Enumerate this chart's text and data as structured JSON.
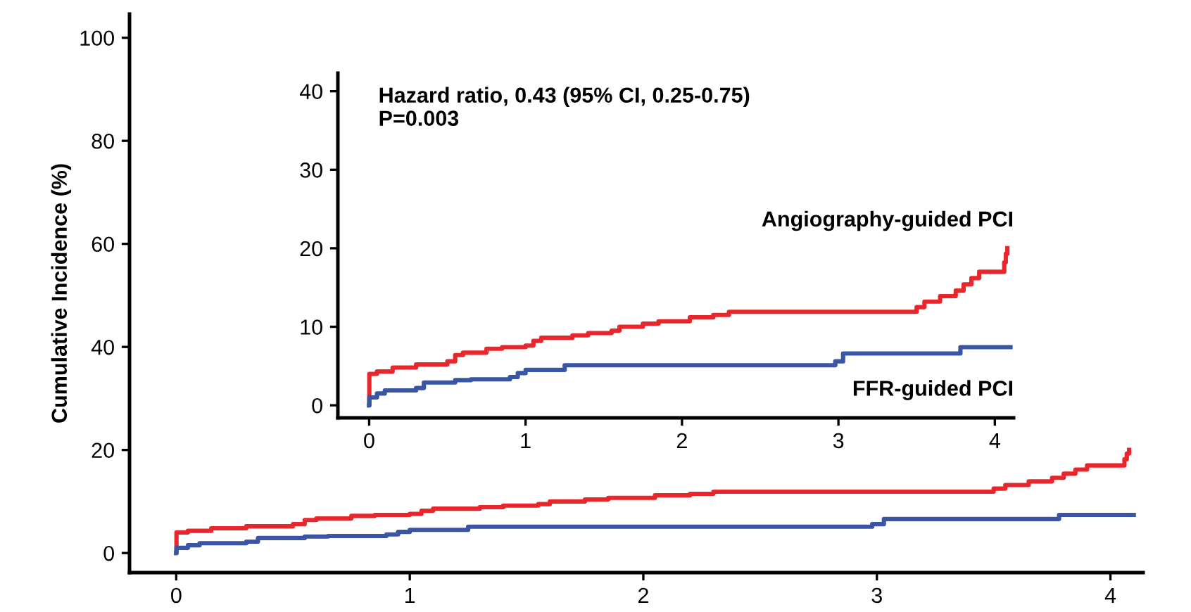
{
  "chart_data": [
    {
      "type": "step",
      "ylabel": "Cumulative Incidence (%)",
      "xlim": [
        -0.2,
        4.14
      ],
      "ylim": [
        -3.8,
        104.6
      ],
      "xticks": [
        0,
        1,
        2,
        3,
        4
      ],
      "yticks": [
        0,
        20,
        40,
        60,
        80,
        100
      ],
      "grid": false,
      "legend": false,
      "series": [
        {
          "color": "#e8262b",
          "x": [
            0,
            0.001,
            0.05,
            0.15,
            0.3,
            0.5,
            0.55,
            0.6,
            0.75,
            0.85,
            1.0,
            1.05,
            1.1,
            1.3,
            1.4,
            1.55,
            1.6,
            1.75,
            1.85,
            2.05,
            2.2,
            2.3,
            3.5,
            3.55,
            3.65,
            3.75,
            3.8,
            3.85,
            3.9,
            4.06,
            4.07,
            4.08
          ],
          "values": [
            0,
            4,
            4.3,
            4.8,
            5.2,
            5.6,
            6.4,
            6.7,
            7.2,
            7.4,
            7.6,
            8.2,
            8.6,
            8.9,
            9.2,
            9.5,
            10.0,
            10.4,
            10.7,
            11.2,
            11.5,
            11.9,
            12.5,
            13.2,
            13.9,
            14.6,
            15.4,
            16.2,
            17.0,
            18.2,
            19.3,
            20.0
          ]
        },
        {
          "color": "#3a55a4",
          "x": [
            0,
            0.001,
            0.05,
            0.1,
            0.3,
            0.35,
            0.55,
            0.65,
            0.9,
            0.95,
            1.0,
            1.25,
            2.98,
            3.03,
            3.78,
            4.1
          ],
          "values": [
            0,
            1.0,
            1.5,
            1.9,
            2.2,
            2.9,
            3.2,
            3.3,
            3.6,
            4.1,
            4.5,
            5.1,
            5.6,
            6.6,
            7.4,
            7.4
          ]
        }
      ]
    },
    {
      "type": "step",
      "xlim": [
        -0.2,
        4.12
      ],
      "ylim": [
        -1.6,
        42.3
      ],
      "xticks": [
        0,
        1,
        2,
        3,
        4
      ],
      "yticks": [
        0,
        10,
        20,
        30,
        40
      ],
      "grid": false,
      "legend": false,
      "annotations": [
        "Hazard ratio, 0.43 (95% CI, 0.25-0.75)\nP=0.003"
      ],
      "series": [
        {
          "name": "Angiography-guided PCI",
          "color": "#e8262b",
          "x": [
            0,
            0.001,
            0.05,
            0.15,
            0.3,
            0.5,
            0.55,
            0.6,
            0.75,
            0.85,
            1.0,
            1.05,
            1.1,
            1.3,
            1.4,
            1.55,
            1.6,
            1.75,
            1.85,
            2.05,
            2.2,
            2.3,
            3.5,
            3.55,
            3.65,
            3.75,
            3.8,
            3.85,
            3.9,
            4.06,
            4.07,
            4.08
          ],
          "values": [
            0,
            4,
            4.3,
            4.8,
            5.2,
            5.6,
            6.4,
            6.7,
            7.2,
            7.4,
            7.6,
            8.2,
            8.6,
            8.9,
            9.2,
            9.5,
            10.0,
            10.4,
            10.7,
            11.2,
            11.5,
            11.9,
            12.5,
            13.2,
            13.9,
            14.6,
            15.4,
            16.2,
            17.0,
            18.2,
            19.3,
            20.0
          ]
        },
        {
          "name": "FFR-guided PCI",
          "color": "#3a55a4",
          "x": [
            0,
            0.001,
            0.05,
            0.1,
            0.3,
            0.35,
            0.55,
            0.65,
            0.9,
            0.95,
            1.0,
            1.25,
            2.98,
            3.03,
            3.78,
            4.1
          ],
          "values": [
            0,
            1.0,
            1.5,
            1.9,
            2.2,
            2.9,
            3.2,
            3.3,
            3.6,
            4.1,
            4.5,
            5.1,
            5.6,
            6.6,
            7.4,
            7.4
          ]
        }
      ]
    }
  ]
}
